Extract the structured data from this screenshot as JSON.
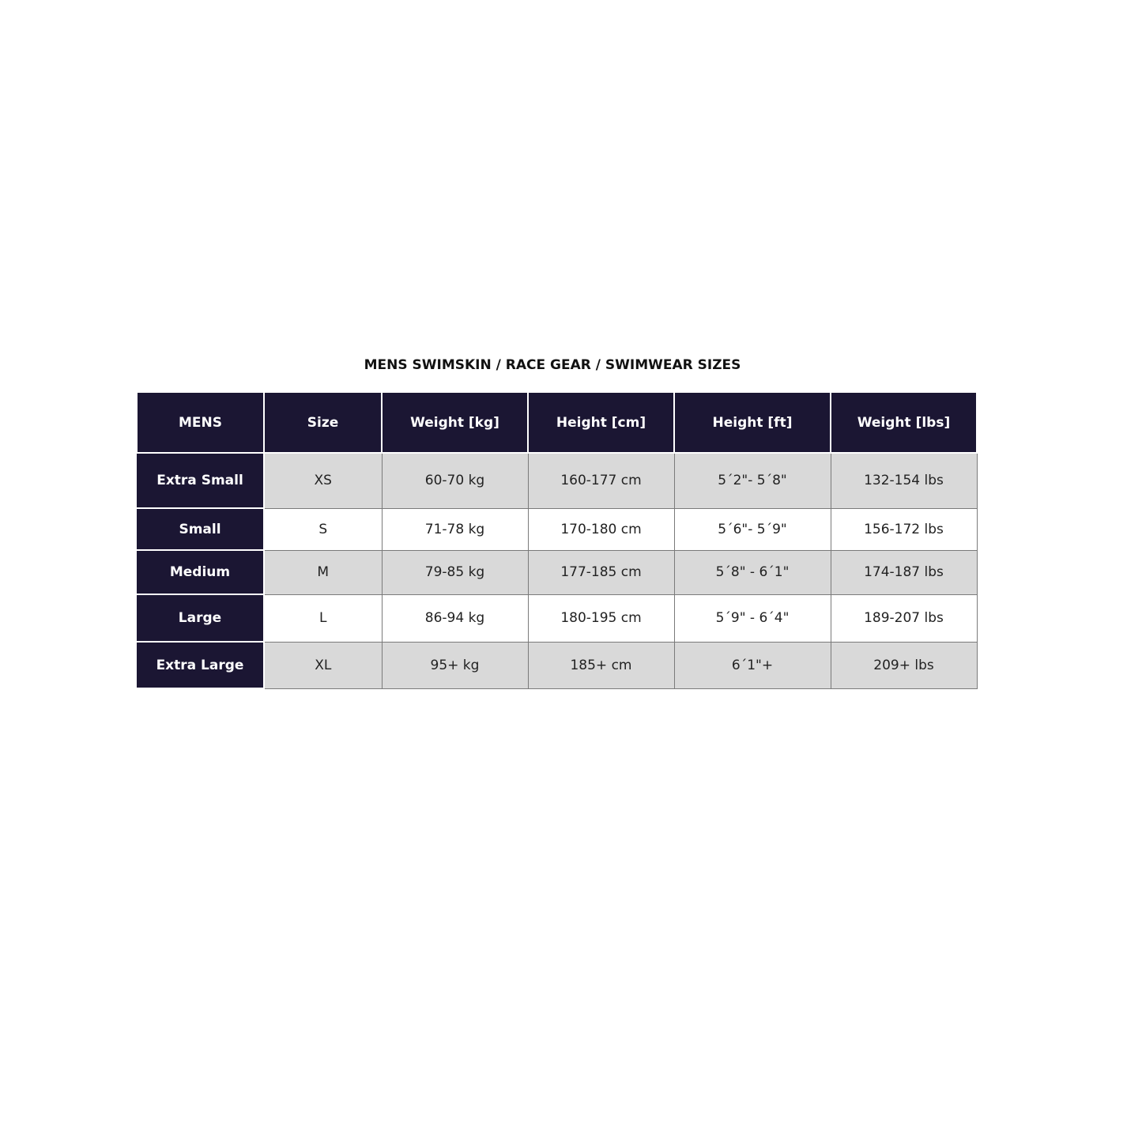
{
  "title": "MENS SWIMSKIN / RACE GEAR / SWIMWEAR SIZES",
  "colors": {
    "header_bg": "#1b1633",
    "row_alt_bg": "#d9d9d9"
  },
  "headers": [
    "MENS",
    "Size",
    "Weight [kg]",
    "Height [cm]",
    "Height [ft]",
    "Weight [lbs]"
  ],
  "rows": [
    {
      "label": "Extra Small",
      "size": "XS",
      "weight_kg": "60-70 kg",
      "height_cm": "160-177 cm",
      "height_ft": "5´2\"- 5´8\"",
      "weight_lbs": "132-154 lbs"
    },
    {
      "label": "Small",
      "size": "S",
      "weight_kg": "71-78 kg",
      "height_cm": "170-180 cm",
      "height_ft": "5´6\"- 5´9\"",
      "weight_lbs": "156-172 lbs"
    },
    {
      "label": "Medium",
      "size": "M",
      "weight_kg": "79-85 kg",
      "height_cm": "177-185 cm",
      "height_ft": "5´8\" - 6´1\"",
      "weight_lbs": "174-187 lbs"
    },
    {
      "label": "Large",
      "size": "L",
      "weight_kg": "86-94 kg",
      "height_cm": "180-195 cm",
      "height_ft": "5´9\" - 6´4\"",
      "weight_lbs": "189-207 lbs"
    },
    {
      "label": "Extra Large",
      "size": "XL",
      "weight_kg": "95+ kg",
      "height_cm": "185+ cm",
      "height_ft": "6´1\"+",
      "weight_lbs": "209+ lbs"
    }
  ]
}
